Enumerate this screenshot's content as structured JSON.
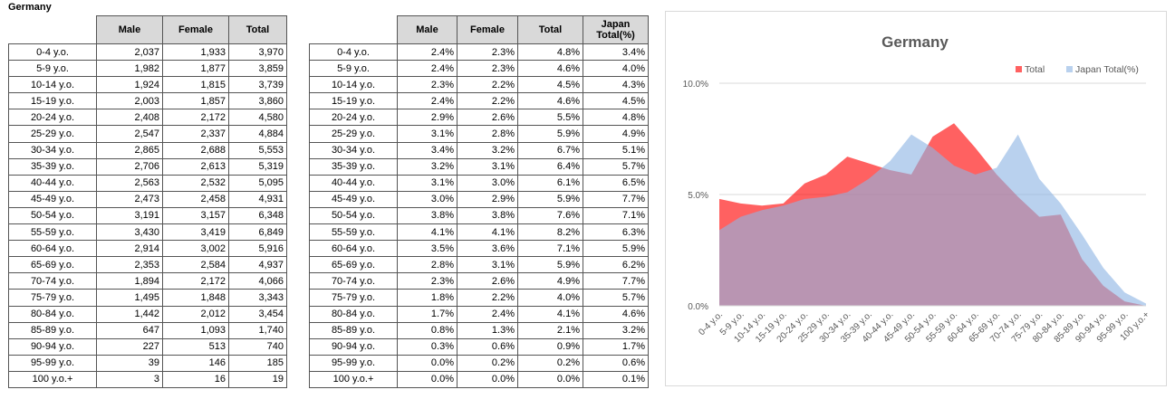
{
  "sheet_title": "Germany",
  "table1": {
    "headers": [
      "",
      "Male",
      "Female",
      "Total"
    ],
    "rows": [
      [
        "0-4 y.o.",
        "2,037",
        "1,933",
        "3,970"
      ],
      [
        "5-9 y.o.",
        "1,982",
        "1,877",
        "3,859"
      ],
      [
        "10-14 y.o.",
        "1,924",
        "1,815",
        "3,739"
      ],
      [
        "15-19 y.o.",
        "2,003",
        "1,857",
        "3,860"
      ],
      [
        "20-24 y.o.",
        "2,408",
        "2,172",
        "4,580"
      ],
      [
        "25-29 y.o.",
        "2,547",
        "2,337",
        "4,884"
      ],
      [
        "30-34 y.o.",
        "2,865",
        "2,688",
        "5,553"
      ],
      [
        "35-39 y.o.",
        "2,706",
        "2,613",
        "5,319"
      ],
      [
        "40-44 y.o.",
        "2,563",
        "2,532",
        "5,095"
      ],
      [
        "45-49 y.o.",
        "2,473",
        "2,458",
        "4,931"
      ],
      [
        "50-54 y.o.",
        "3,191",
        "3,157",
        "6,348"
      ],
      [
        "55-59 y.o.",
        "3,430",
        "3,419",
        "6,849"
      ],
      [
        "60-64 y.o.",
        "2,914",
        "3,002",
        "5,916"
      ],
      [
        "65-69 y.o.",
        "2,353",
        "2,584",
        "4,937"
      ],
      [
        "70-74 y.o.",
        "1,894",
        "2,172",
        "4,066"
      ],
      [
        "75-79 y.o.",
        "1,495",
        "1,848",
        "3,343"
      ],
      [
        "80-84 y.o.",
        "1,442",
        "2,012",
        "3,454"
      ],
      [
        "85-89 y.o.",
        "647",
        "1,093",
        "1,740"
      ],
      [
        "90-94 y.o.",
        "227",
        "513",
        "740"
      ],
      [
        "95-99 y.o.",
        "39",
        "146",
        "185"
      ],
      [
        "100 y.o.+",
        "3",
        "16",
        "19"
      ]
    ]
  },
  "table2": {
    "headers": [
      "",
      "Male",
      "Female",
      "Total",
      "Japan Total(%)"
    ],
    "rows": [
      [
        "0-4 y.o.",
        "2.4%",
        "2.3%",
        "4.8%",
        "3.4%"
      ],
      [
        "5-9 y.o.",
        "2.4%",
        "2.3%",
        "4.6%",
        "4.0%"
      ],
      [
        "10-14 y.o.",
        "2.3%",
        "2.2%",
        "4.5%",
        "4.3%"
      ],
      [
        "15-19 y.o.",
        "2.4%",
        "2.2%",
        "4.6%",
        "4.5%"
      ],
      [
        "20-24 y.o.",
        "2.9%",
        "2.6%",
        "5.5%",
        "4.8%"
      ],
      [
        "25-29 y.o.",
        "3.1%",
        "2.8%",
        "5.9%",
        "4.9%"
      ],
      [
        "30-34 y.o.",
        "3.4%",
        "3.2%",
        "6.7%",
        "5.1%"
      ],
      [
        "35-39 y.o.",
        "3.2%",
        "3.1%",
        "6.4%",
        "5.7%"
      ],
      [
        "40-44 y.o.",
        "3.1%",
        "3.0%",
        "6.1%",
        "6.5%"
      ],
      [
        "45-49 y.o.",
        "3.0%",
        "2.9%",
        "5.9%",
        "7.7%"
      ],
      [
        "50-54 y.o.",
        "3.8%",
        "3.8%",
        "7.6%",
        "7.1%"
      ],
      [
        "55-59 y.o.",
        "4.1%",
        "4.1%",
        "8.2%",
        "6.3%"
      ],
      [
        "60-64 y.o.",
        "3.5%",
        "3.6%",
        "7.1%",
        "5.9%"
      ],
      [
        "65-69 y.o.",
        "2.8%",
        "3.1%",
        "5.9%",
        "6.2%"
      ],
      [
        "70-74 y.o.",
        "2.3%",
        "2.6%",
        "4.9%",
        "7.7%"
      ],
      [
        "75-79 y.o.",
        "1.8%",
        "2.2%",
        "4.0%",
        "5.7%"
      ],
      [
        "80-84 y.o.",
        "1.7%",
        "2.4%",
        "4.1%",
        "4.6%"
      ],
      [
        "85-89 y.o.",
        "0.8%",
        "1.3%",
        "2.1%",
        "3.2%"
      ],
      [
        "90-94 y.o.",
        "0.3%",
        "0.6%",
        "0.9%",
        "1.7%"
      ],
      [
        "95-99 y.o.",
        "0.0%",
        "0.2%",
        "0.2%",
        "0.6%"
      ],
      [
        "100 y.o.+",
        "0.0%",
        "0.0%",
        "0.0%",
        "0.1%"
      ]
    ]
  },
  "chart_data": {
    "type": "area",
    "title": "Germany",
    "categories": [
      "0-4 y.o.",
      "5-9 y.o.",
      "10-14 y.o.",
      "15-19 y.o.",
      "20-24 y.o.",
      "25-29 y.o.",
      "30-34 y.o.",
      "35-39 y.o.",
      "40-44 y.o.",
      "45-49 y.o.",
      "50-54 y.o.",
      "55-59 y.o.",
      "60-64 y.o.",
      "65-69 y.o.",
      "70-74 y.o.",
      "75-79 y.o.",
      "80-84 y.o.",
      "85-89 y.o.",
      "90-94 y.o.",
      "95-99 y.o.",
      "100 y.o.+"
    ],
    "series": [
      {
        "name": "Total",
        "color": "#ff0000",
        "values": [
          4.8,
          4.6,
          4.5,
          4.6,
          5.5,
          5.9,
          6.7,
          6.4,
          6.1,
          5.9,
          7.6,
          8.2,
          7.1,
          5.9,
          4.9,
          4.0,
          4.1,
          2.1,
          0.9,
          0.2,
          0.0
        ]
      },
      {
        "name": "Japan Total(%)",
        "color": "#8eb4e3",
        "values": [
          3.4,
          4.0,
          4.3,
          4.5,
          4.8,
          4.9,
          5.1,
          5.7,
          6.5,
          7.7,
          7.1,
          6.3,
          5.9,
          6.2,
          7.7,
          5.7,
          4.6,
          3.2,
          1.7,
          0.6,
          0.1
        ]
      }
    ],
    "yticks": [
      "0.0%",
      "5.0%",
      "10.0%"
    ],
    "ylim": [
      0,
      10
    ],
    "grid": true,
    "legend": "top-right"
  }
}
